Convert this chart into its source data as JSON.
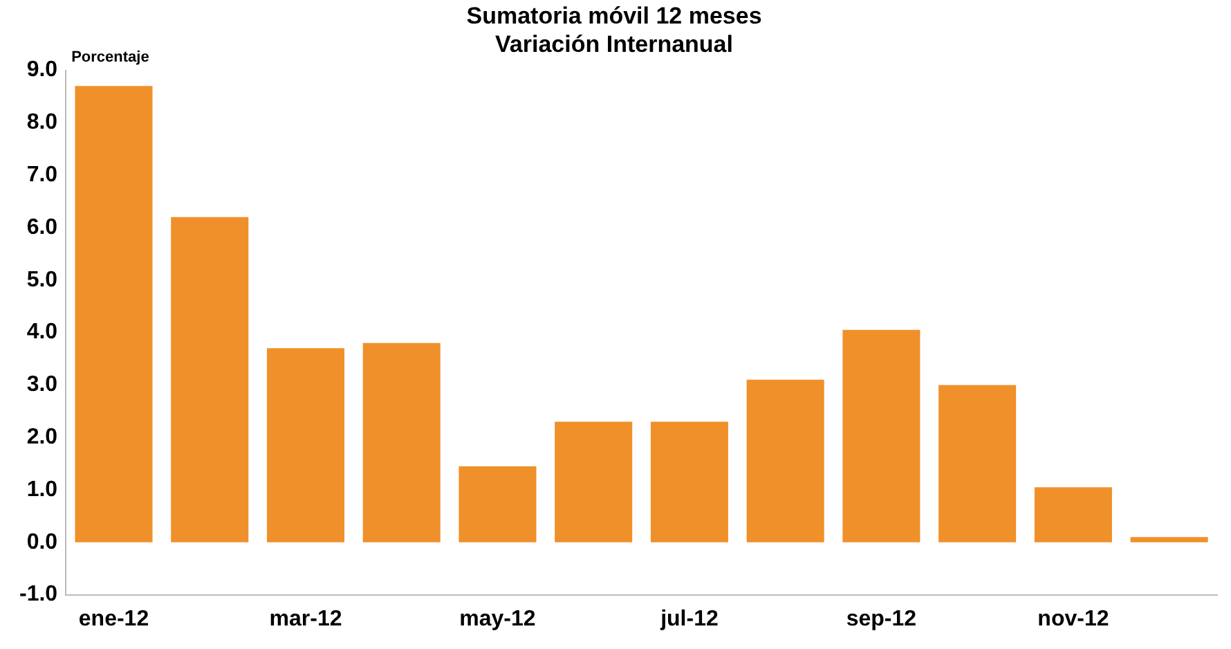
{
  "chart_data": {
    "type": "bar",
    "title": [
      "Sumatoria móvil 12 meses",
      "Variación Internanual"
    ],
    "ylabel": "Porcentaje",
    "categories": [
      "ene-12",
      null,
      "mar-12",
      null,
      "may-12",
      null,
      "jul-12",
      null,
      "sep-12",
      null,
      "nov-12",
      null
    ],
    "values": [
      8.7,
      6.2,
      3.7,
      3.8,
      1.45,
      2.3,
      2.3,
      3.1,
      4.05,
      3.0,
      1.05,
      0.1
    ],
    "color": "#f0902a",
    "ylim": [
      -1,
      9
    ],
    "yticks": [
      {
        "value": -1,
        "label": "-1.0"
      },
      {
        "value": 0,
        "label": "0.0"
      },
      {
        "value": 1,
        "label": "1.0"
      },
      {
        "value": 2,
        "label": "2.0"
      },
      {
        "value": 3,
        "label": "3.0"
      },
      {
        "value": 4,
        "label": "4.0"
      },
      {
        "value": 5,
        "label": "5.0"
      },
      {
        "value": 6,
        "label": "6.0"
      },
      {
        "value": 7,
        "label": "7.0"
      },
      {
        "value": 8,
        "label": "8.0"
      },
      {
        "value": 9,
        "label": "9.0"
      }
    ],
    "grid": false,
    "legend": false
  }
}
